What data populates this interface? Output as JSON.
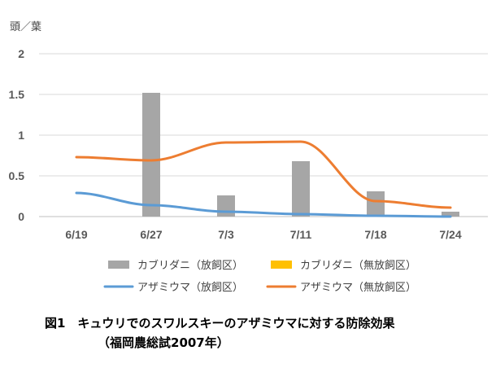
{
  "chart_data": {
    "type": "bar+line",
    "y_unit_label": "頭／葉",
    "categories": [
      "6/19",
      "6/27",
      "7/3",
      "7/11",
      "7/18",
      "7/24"
    ],
    "ylim": [
      0,
      2
    ],
    "yticks": [
      "0",
      "0.5",
      "1",
      "1.5",
      "2"
    ],
    "ytick_values": [
      0,
      0.5,
      1,
      1.5,
      2
    ],
    "grid": true,
    "legend_position": "bottom",
    "bar_series": [
      {
        "name": "カブリダニ（放飼区）",
        "color": "#a6a6a6",
        "values": [
          0,
          1.52,
          0.26,
          0.68,
          0.31,
          0.06
        ]
      },
      {
        "name": "カブリダニ（無放飼区）",
        "color": "#ffc000",
        "values": [
          0,
          0,
          0,
          0,
          0,
          0
        ]
      }
    ],
    "line_series": [
      {
        "name": "アザミウマ（放飼区）",
        "color": "#5b9bd5",
        "values": [
          0.29,
          0.14,
          0.06,
          0.03,
          0.01,
          0.0
        ]
      },
      {
        "name": "アザミウマ（無放飼区）",
        "color": "#ed7d31",
        "values": [
          0.73,
          0.69,
          0.91,
          0.92,
          0.19,
          0.11
        ]
      }
    ]
  },
  "caption": {
    "line1": "図1　キュウリでのスワルスキーのアザミウマに対する防除効果",
    "line2": "（福岡農総試2007年）"
  }
}
